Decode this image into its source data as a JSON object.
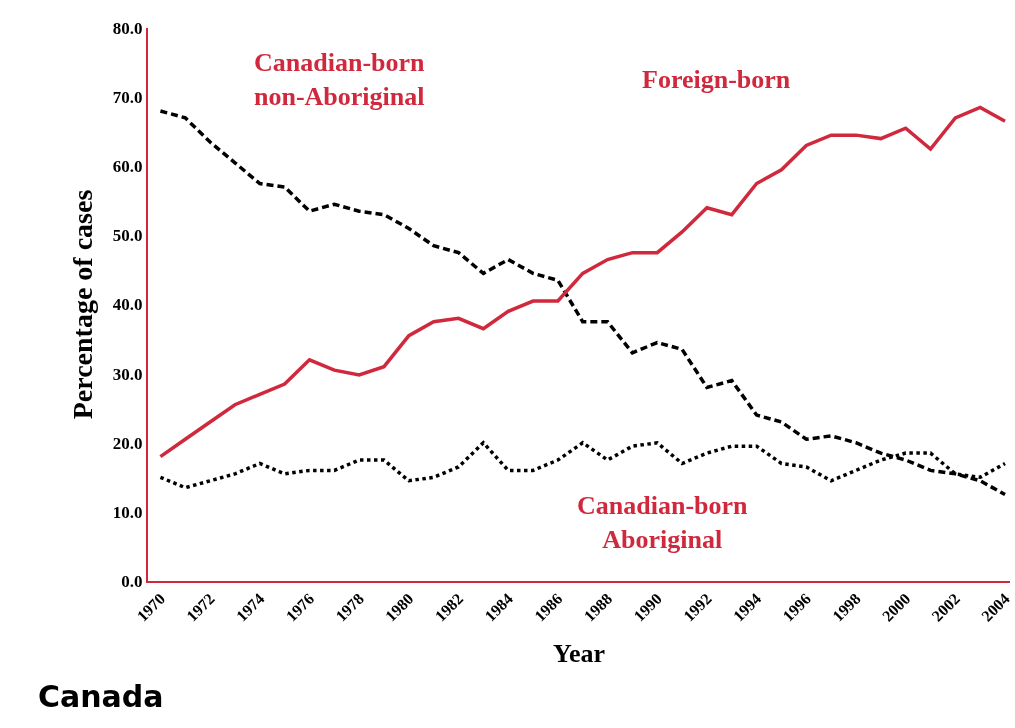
{
  "chart_data": {
    "type": "line",
    "xlabel": "Year",
    "ylabel": "Percentage of cases",
    "annotations": [
      "Canada"
    ],
    "x": [
      1970,
      1971,
      1972,
      1973,
      1974,
      1975,
      1976,
      1977,
      1978,
      1979,
      1980,
      1981,
      1982,
      1983,
      1984,
      1985,
      1986,
      1987,
      1988,
      1989,
      1990,
      1991,
      1992,
      1993,
      1994,
      1995,
      1996,
      1997,
      1998,
      1999,
      2000,
      2001,
      2002,
      2003,
      2004
    ],
    "series": [
      {
        "name": "Canadian-born non-Aboriginal",
        "color": "#000000",
        "line_style": "dashed",
        "values": [
          68,
          67,
          63.5,
          60.5,
          57.5,
          57,
          53.5,
          54.5,
          53.5,
          53,
          51,
          48.5,
          47.5,
          44.5,
          46.5,
          44.5,
          43.5,
          37.5,
          37.5,
          33,
          34.5,
          33.5,
          28,
          29,
          24,
          23,
          20.5,
          21,
          20,
          18.5,
          17.5,
          16,
          15.5,
          14.5,
          12.5
        ]
      },
      {
        "name": "Foreign-born",
        "color": "#d0283c",
        "line_style": "solid",
        "values": [
          18,
          20.5,
          23,
          25.5,
          27,
          28.5,
          32,
          30.5,
          29.8,
          31,
          35.5,
          37.5,
          38,
          36.5,
          39,
          40.5,
          40.5,
          44.5,
          46.5,
          47.5,
          47.5,
          50.5,
          54,
          53,
          57.5,
          59.5,
          63,
          64.5,
          64.5,
          64,
          65.5,
          62.5,
          67,
          68.5,
          66.5
        ]
      },
      {
        "name": "Canadian-born Aboriginal",
        "color": "#000000",
        "line_style": "dotted",
        "values": [
          15,
          13.5,
          14.5,
          15.5,
          17,
          15.5,
          16,
          16,
          17.5,
          17.5,
          14.5,
          15,
          16.5,
          20,
          16,
          16,
          17.5,
          20,
          17.5,
          19.5,
          20,
          17,
          18.5,
          19.5,
          19.5,
          17,
          16.5,
          14.5,
          16,
          17.5,
          18.5,
          18.5,
          15.5,
          15,
          17
        ]
      }
    ],
    "xlim": [
      1969.5,
      2004.2
    ],
    "xticks": [
      1970,
      1972,
      1974,
      1976,
      1978,
      1980,
      1982,
      1984,
      1986,
      1988,
      1990,
      1992,
      1994,
      1996,
      1998,
      2000,
      2002,
      2004
    ],
    "ylim": [
      0,
      80
    ],
    "yticks": [
      {
        "value": 0,
        "label": "0.0"
      },
      {
        "value": 10,
        "label": "10.0"
      },
      {
        "value": 20,
        "label": "20.0"
      },
      {
        "value": 30,
        "label": "30.0"
      },
      {
        "value": 40,
        "label": "40.0"
      },
      {
        "value": 50,
        "label": "50.0"
      },
      {
        "value": 60,
        "label": "60.0"
      },
      {
        "value": 70,
        "label": "70.0"
      },
      {
        "value": 80,
        "label": "80.0"
      }
    ],
    "grid": false,
    "legend": false,
    "marker": "none"
  }
}
